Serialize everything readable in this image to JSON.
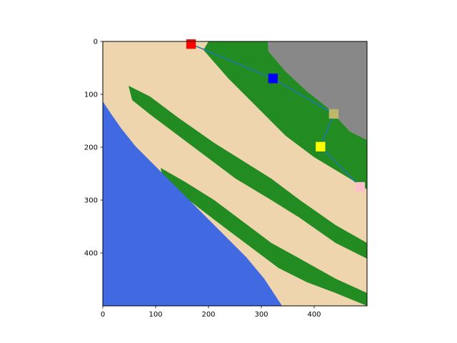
{
  "chart_data": {
    "type": "heatmap",
    "title": "",
    "xlabel": "",
    "ylabel": "",
    "xlim": [
      0,
      500
    ],
    "ylim": [
      500,
      0
    ],
    "x_ticks": [
      0,
      100,
      200,
      300,
      400
    ],
    "y_ticks": [
      0,
      100,
      200,
      300,
      400
    ],
    "x_tick_labels": [
      "0",
      "100",
      "200",
      "300",
      "400"
    ],
    "y_tick_labels": [
      "0",
      "100",
      "200",
      "300",
      "400"
    ],
    "grid": false,
    "terrain_colors": {
      "water": "#4169e1",
      "sand": "#eed5ae",
      "forest": "#228b22",
      "rock": "#888888"
    },
    "path": {
      "color": "#1f77b4",
      "points": [
        [
          167,
          5
        ],
        [
          322,
          70
        ],
        [
          437,
          137
        ],
        [
          412,
          199
        ],
        [
          487,
          275
        ]
      ]
    },
    "markers": [
      {
        "x": 167,
        "y": 5,
        "color": "#ff0000",
        "size": 18
      },
      {
        "x": 322,
        "y": 70,
        "color": "#0000ff",
        "size": 18
      },
      {
        "x": 437,
        "y": 137,
        "color": "#bdb76b",
        "size": 18
      },
      {
        "x": 412,
        "y": 199,
        "color": "#ffff00",
        "size": 18
      },
      {
        "x": 487,
        "y": 275,
        "color": "#ffc0cb",
        "size": 18
      }
    ]
  }
}
